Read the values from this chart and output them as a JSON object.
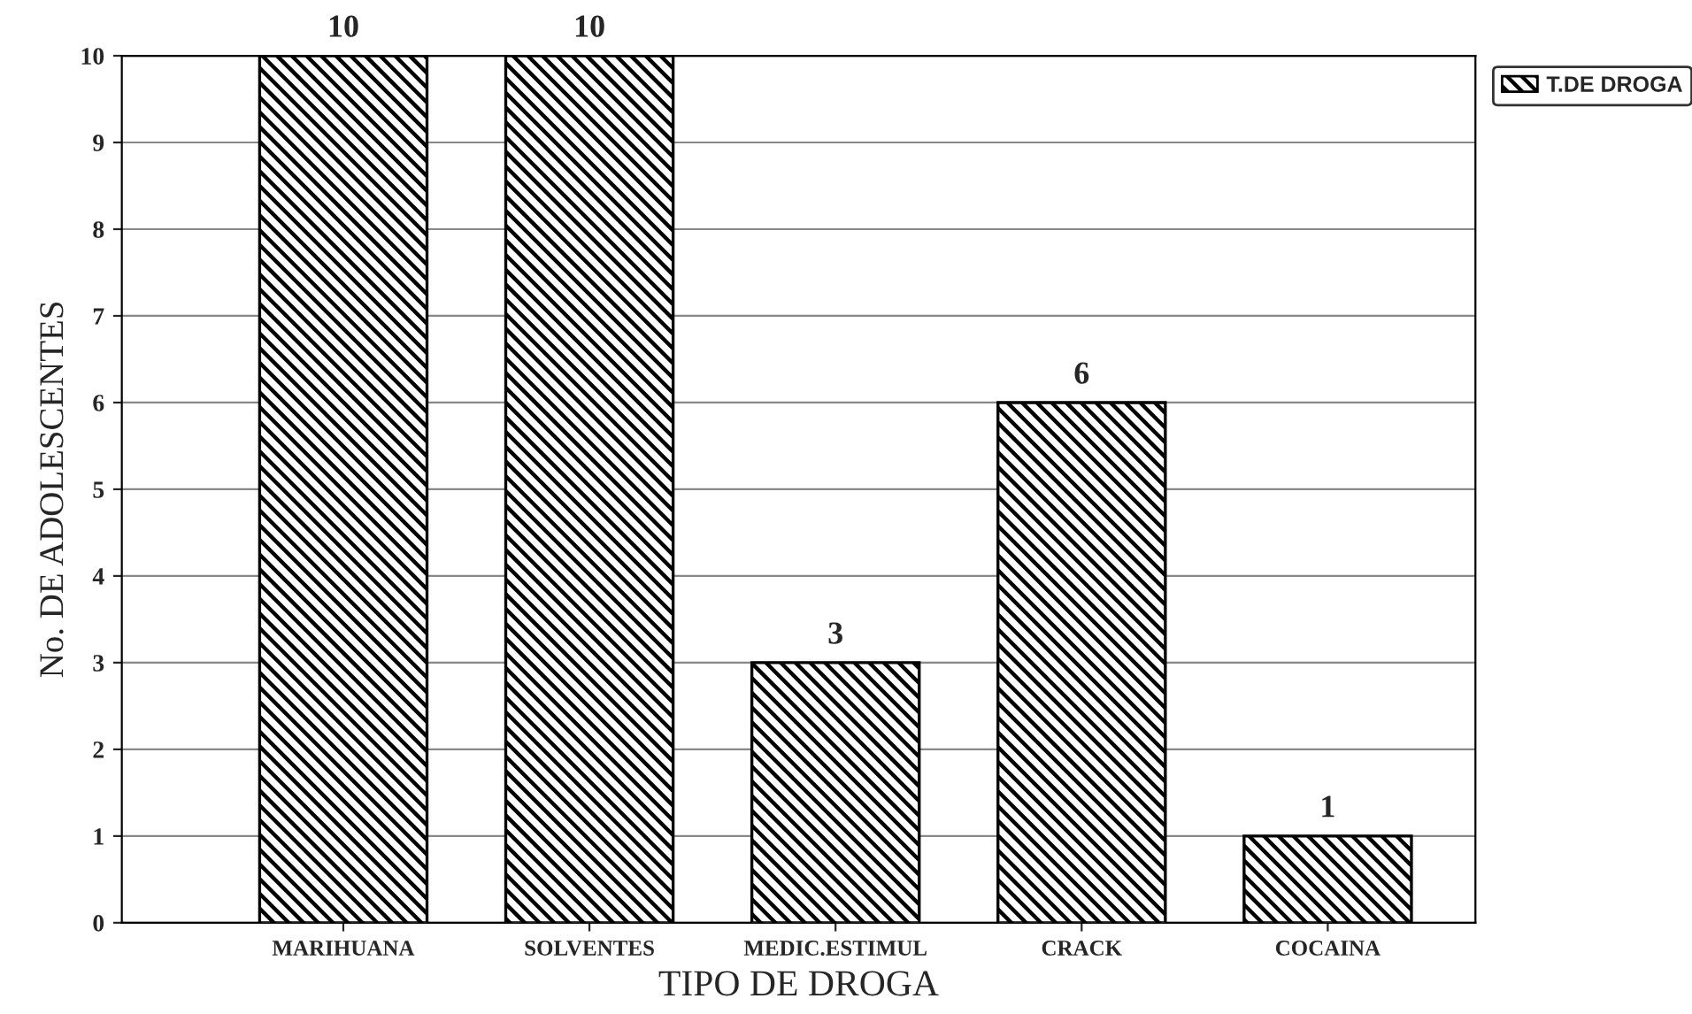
{
  "chart_data": {
    "type": "bar",
    "xlabel": "TIPO DE DROGA",
    "ylabel": "No. DE ADOLESCENTES",
    "categories": [
      "MARIHUANA",
      "SOLVENTES",
      "MEDIC.ESTIMUL",
      "CRACK",
      "COCAINA"
    ],
    "series": [
      {
        "name": "T.DE DROGA",
        "color": "#000000",
        "values": [
          10,
          10,
          3,
          6,
          1
        ]
      }
    ],
    "ylim": [
      0,
      10
    ],
    "yticks": [
      0,
      1,
      2,
      3,
      4,
      5,
      6,
      7,
      8,
      9,
      10
    ],
    "grid": "y",
    "legend": "top right",
    "data_labels": true
  }
}
